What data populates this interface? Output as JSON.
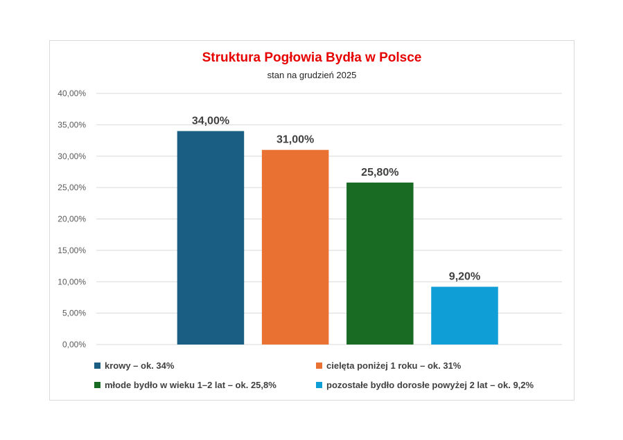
{
  "chart_data": {
    "type": "bar",
    "title": "Struktura Pogłowia Bydła w Polsce",
    "subtitle": "stan na grudzień 2025",
    "xlabel": "",
    "ylabel": "",
    "ylim": [
      0,
      40
    ],
    "y_ticks": [
      "0,00%",
      "5,00%",
      "10,00%",
      "15,00%",
      "20,00%",
      "25,00%",
      "30,00%",
      "35,00%",
      "40,00%"
    ],
    "grid": true,
    "legend_position": "bottom",
    "categories": [
      "krowy – ok. 34%",
      "cielęta poniżej 1 roku – ok. 31%",
      "młode bydło w wieku 1–2 lat – ok. 25,8%",
      "pozostałe bydło dorosłe powyżej 2 lat – ok. 9,2%"
    ],
    "values": [
      34.0,
      31.0,
      25.8,
      9.2
    ],
    "data_labels": [
      "34,00%",
      "31,00%",
      "25,80%",
      "9,20%"
    ],
    "colors": [
      "#1a5f83",
      "#e97132",
      "#196b24",
      "#0f9ed5"
    ]
  }
}
